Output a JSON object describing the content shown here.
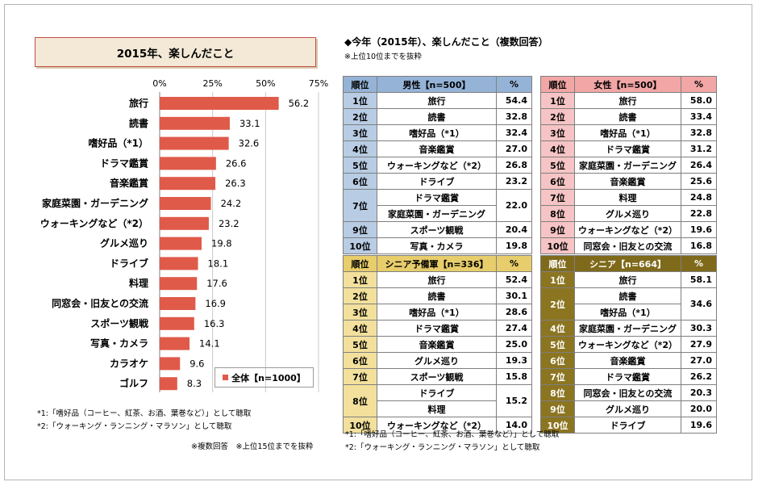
{
  "left": {
    "title": "2015年、楽しんだこと",
    "legend": "全体【n=1000】",
    "notes": [
      "*1:「嗜好品（コーヒー、紅茶、お酒、葉巻など）」として聴取",
      "*2:「ウォーキング・ランニング・マラソン」として聴取"
    ],
    "footnote": "※複数回答　※上位15位までを抜粋"
  },
  "chart_data": {
    "type": "bar",
    "orientation": "horizontal",
    "categories": [
      "旅行",
      "読書",
      "嗜好品（*1）",
      "ドラマ鑑賞",
      "音楽鑑賞",
      "家庭菜園・ガーデニング",
      "ウォーキングなど（*2）",
      "グルメ巡り",
      "ドライブ",
      "料理",
      "同窓会・旧友との交流",
      "スポーツ観戦",
      "写真・カメラ",
      "カラオケ",
      "ゴルフ"
    ],
    "series": [
      {
        "name": "全体【n=1000】",
        "values": [
          56.2,
          33.1,
          32.6,
          26.6,
          26.3,
          24.2,
          23.2,
          19.8,
          18.1,
          17.6,
          16.9,
          16.3,
          14.1,
          9.6,
          8.3
        ]
      }
    ],
    "value_labels": [
      "56.2",
      "33.1",
      "32.6",
      "26.6",
      "26.3",
      "24.2",
      "23.2",
      "19.8",
      "18.1",
      "17.6",
      "16.9",
      "16.3",
      "14.1",
      "9.6",
      "8.3"
    ],
    "xticks": [
      "0%",
      "25%",
      "50%",
      "75%"
    ],
    "xlim": [
      0,
      75
    ],
    "title": "2015年、楽しんだこと",
    "bar_color": "#e05a4a",
    "grid": true,
    "legend_position": "bottom-right"
  },
  "right": {
    "title": "◆今年（2015年）、楽しんだこと（複数回答）",
    "subtitle": "※上位10位までを抜粋",
    "notes": [
      "*1:「嗜好品（コーヒー、紅茶、お酒、葉巻など）」として聴取",
      "*2:「ウォーキング・ランニング・マラソン」として聴取"
    ]
  },
  "tables": [
    {
      "id": "male",
      "header": [
        "順位",
        "男性【n=500】",
        "%"
      ],
      "rows": [
        {
          "rank": "1位",
          "items": [
            "旅行"
          ],
          "value": "54.4"
        },
        {
          "rank": "2位",
          "items": [
            "読書"
          ],
          "value": "32.8"
        },
        {
          "rank": "3位",
          "items": [
            "嗜好品（*1）"
          ],
          "value": "32.4"
        },
        {
          "rank": "4位",
          "items": [
            "音楽鑑賞"
          ],
          "value": "27.0"
        },
        {
          "rank": "5位",
          "items": [
            "ウォーキングなど（*2）"
          ],
          "value": "26.8"
        },
        {
          "rank": "6位",
          "items": [
            "ドライブ"
          ],
          "value": "23.2"
        },
        {
          "rank": "7位",
          "items": [
            "ドラマ鑑賞",
            "家庭菜園・ガーデニング"
          ],
          "value": "22.0"
        },
        {
          "rank": "9位",
          "items": [
            "スポーツ観戦"
          ],
          "value": "20.4"
        },
        {
          "rank": "10位",
          "items": [
            "写真・カメラ"
          ],
          "value": "19.8"
        }
      ]
    },
    {
      "id": "female",
      "header": [
        "順位",
        "女性【n=500】",
        "%"
      ],
      "rows": [
        {
          "rank": "1位",
          "items": [
            "旅行"
          ],
          "value": "58.0"
        },
        {
          "rank": "2位",
          "items": [
            "読書"
          ],
          "value": "33.4"
        },
        {
          "rank": "3位",
          "items": [
            "嗜好品（*1）"
          ],
          "value": "32.8"
        },
        {
          "rank": "4位",
          "items": [
            "ドラマ鑑賞"
          ],
          "value": "31.2"
        },
        {
          "rank": "5位",
          "items": [
            "家庭菜園・ガーデニング"
          ],
          "value": "26.4"
        },
        {
          "rank": "6位",
          "items": [
            "音楽鑑賞"
          ],
          "value": "25.6"
        },
        {
          "rank": "7位",
          "items": [
            "料理"
          ],
          "value": "24.8"
        },
        {
          "rank": "8位",
          "items": [
            "グルメ巡り"
          ],
          "value": "22.8"
        },
        {
          "rank": "9位",
          "items": [
            "ウォーキングなど（*2）"
          ],
          "value": "19.6"
        },
        {
          "rank": "10位",
          "items": [
            "同窓会・旧友との交流"
          ],
          "value": "16.8"
        }
      ]
    },
    {
      "id": "pre-senior",
      "header": [
        "順位",
        "シニア予備軍【n=336】",
        "%"
      ],
      "rows": [
        {
          "rank": "1位",
          "items": [
            "旅行"
          ],
          "value": "52.4"
        },
        {
          "rank": "2位",
          "items": [
            "読書"
          ],
          "value": "30.1"
        },
        {
          "rank": "3位",
          "items": [
            "嗜好品（*1）"
          ],
          "value": "28.6"
        },
        {
          "rank": "4位",
          "items": [
            "ドラマ鑑賞"
          ],
          "value": "27.4"
        },
        {
          "rank": "5位",
          "items": [
            "音楽鑑賞"
          ],
          "value": "25.0"
        },
        {
          "rank": "6位",
          "items": [
            "グルメ巡り"
          ],
          "value": "19.3"
        },
        {
          "rank": "7位",
          "items": [
            "スポーツ観戦"
          ],
          "value": "15.8"
        },
        {
          "rank": "8位",
          "items": [
            "ドライブ",
            "料理"
          ],
          "value": "15.2"
        },
        {
          "rank": "10位",
          "items": [
            "ウォーキングなど（*2）"
          ],
          "value": "14.0"
        }
      ]
    },
    {
      "id": "senior",
      "header": [
        "順位",
        "シニア【n=664】",
        "%"
      ],
      "rows": [
        {
          "rank": "1位",
          "items": [
            "旅行"
          ],
          "value": "58.1"
        },
        {
          "rank": "2位",
          "items": [
            "読書",
            "嗜好品（*1）"
          ],
          "value": "34.6"
        },
        {
          "rank": "4位",
          "items": [
            "家庭菜園・ガーデニング"
          ],
          "value": "30.3"
        },
        {
          "rank": "5位",
          "items": [
            "ウォーキングなど（*2）"
          ],
          "value": "27.9"
        },
        {
          "rank": "6位",
          "items": [
            "音楽鑑賞"
          ],
          "value": "27.0"
        },
        {
          "rank": "7位",
          "items": [
            "ドラマ鑑賞"
          ],
          "value": "26.2"
        },
        {
          "rank": "8位",
          "items": [
            "同窓会・旧友との交流"
          ],
          "value": "20.3"
        },
        {
          "rank": "9位",
          "items": [
            "グルメ巡り"
          ],
          "value": "20.0"
        },
        {
          "rank": "10位",
          "items": [
            "ドライブ"
          ],
          "value": "19.6"
        }
      ]
    }
  ]
}
